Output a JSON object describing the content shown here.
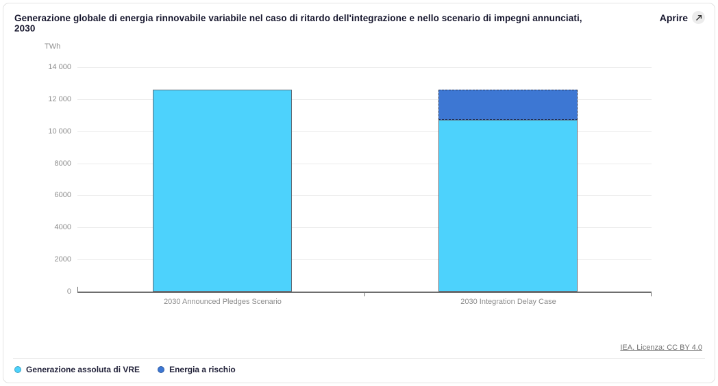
{
  "header": {
    "title": "Generazione globale di energia rinnovabile variabile nel caso di ritardo dell'integrazione e nello scenario di impegni annunciati, 2030",
    "open_label": "Aprire",
    "open_icon": "external-link-icon"
  },
  "chart_data": {
    "type": "bar",
    "stacked": true,
    "title": "Generazione globale di energia rinnovabile variabile nel caso di ritardo dell'integrazione e nello scenario di impegni annunciati, 2030",
    "unit": "TWh",
    "xlabel": "",
    "ylabel": "TWh",
    "ylim": [
      0,
      14000
    ],
    "ytick_interval": 2000,
    "ytick_labels": [
      "0",
      "2000",
      "4000",
      "6000",
      "8000",
      "10 000",
      "12 000",
      "14 000"
    ],
    "grid": true,
    "legend_position": "bottom-left",
    "categories": [
      "2030 Announced Pledges Scenario",
      "2030 Integration Delay Case"
    ],
    "series": [
      {
        "name": "Generazione assoluta di VRE",
        "color": "#4DD2FC",
        "border": "solid",
        "border_color": "#5f6b76",
        "values": [
          12600,
          10700
        ]
      },
      {
        "name": "Energia a rischio",
        "color": "#3D77D3",
        "border": "dashed",
        "border_color": "#1d2b4f",
        "values": [
          0,
          1900
        ]
      }
    ]
  },
  "footer": {
    "source_link": "IEA. Licenza: CC BY 4.0"
  }
}
